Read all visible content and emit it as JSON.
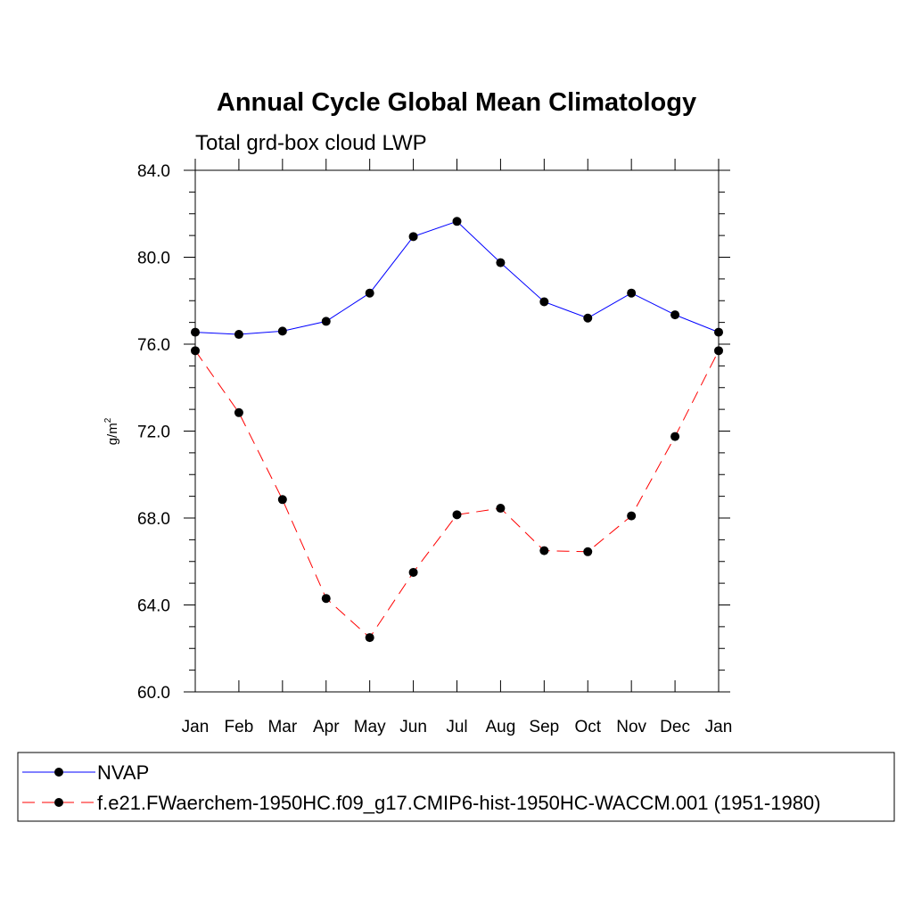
{
  "chart_data": {
    "type": "line",
    "title": "Annual Cycle Global Mean Climatology",
    "subtitle": "Total grd-box cloud LWP",
    "ylabel": "g/m",
    "ylabel_sup": "2",
    "ylim": [
      60,
      84
    ],
    "yticks": [
      "60.0",
      "64.0",
      "68.0",
      "72.0",
      "76.0",
      "80.0",
      "84.0"
    ],
    "categories": [
      "Jan",
      "Feb",
      "Mar",
      "Apr",
      "May",
      "Jun",
      "Jul",
      "Aug",
      "Sep",
      "Oct",
      "Nov",
      "Dec",
      "Jan"
    ],
    "legend_position": "bottom",
    "series": [
      {
        "name": "NVAP",
        "color": "#0000ff",
        "dash": "solid",
        "values": [
          76.55,
          76.45,
          76.6,
          77.05,
          78.35,
          80.95,
          81.65,
          79.75,
          77.95,
          77.2,
          78.35,
          77.35,
          76.55
        ]
      },
      {
        "name": "f.e21.FWaerchem-1950HC.f09_g17.CMIP6-hist-1950HC-WACCM.001 (1951-1980)",
        "color": "#ff0000",
        "dash": "dashed",
        "values": [
          75.7,
          72.85,
          68.85,
          64.3,
          62.5,
          65.5,
          68.15,
          68.45,
          66.5,
          66.45,
          68.1,
          71.75,
          75.7
        ]
      }
    ]
  }
}
